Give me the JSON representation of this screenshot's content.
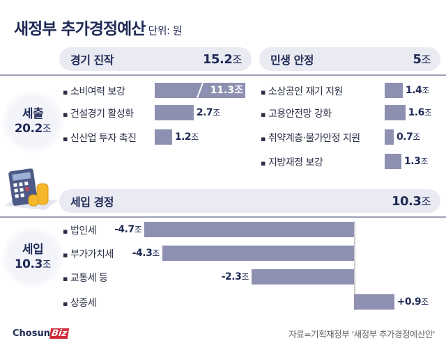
{
  "title": "새정부 추가경정예산",
  "unit": "단위: 원",
  "spending": {
    "label": "세출",
    "total": "20.2",
    "unit": "조",
    "groups": [
      {
        "name": "경기 진작",
        "total": "15.2",
        "items": [
          {
            "label": "소비여력 보강",
            "value": 11.3,
            "text": "11.3",
            "broken": true
          },
          {
            "label": "건설경기 활성화",
            "value": 2.7,
            "text": "2.7"
          },
          {
            "label": "신산업 투자 촉진",
            "value": 1.2,
            "text": "1.2"
          }
        ]
      },
      {
        "name": "민생 안정",
        "total": "5",
        "items": [
          {
            "label": "소상공인 재기 지원",
            "value": 1.4,
            "text": "1.4"
          },
          {
            "label": "고용안전망 강화",
            "value": 1.6,
            "text": "1.6"
          },
          {
            "label": "취약계층·물가안정 지원",
            "value": 0.7,
            "text": "0.7"
          },
          {
            "label": "지방재정 보강",
            "value": 1.3,
            "text": "1.3"
          }
        ]
      }
    ]
  },
  "revenue": {
    "label": "세입",
    "total": "10.3",
    "unit": "조",
    "group": {
      "name": "세입 경정",
      "total": "10.3"
    },
    "items": [
      {
        "label": "법인세",
        "value": -4.7,
        "text": "-4.7"
      },
      {
        "label": "부가가치세",
        "value": -4.3,
        "text": "-4.3"
      },
      {
        "label": "교통세 등",
        "value": -2.3,
        "text": "-2.3"
      },
      {
        "label": "상증세",
        "value": 0.9,
        "text": "+0.9"
      }
    ]
  },
  "chart_data": {
    "type": "bar",
    "unit": "조 원",
    "series": [
      {
        "name": "경기 진작",
        "categories": [
          "소비여력 보강",
          "건설경기 활성화",
          "신산업 투자 촉진"
        ],
        "values": [
          11.3,
          2.7,
          1.2
        ]
      },
      {
        "name": "민생 안정",
        "categories": [
          "소상공인 재기 지원",
          "고용안전망 강화",
          "취약계층·물가안정 지원",
          "지방재정 보강"
        ],
        "values": [
          1.4,
          1.6,
          0.7,
          1.3
        ]
      },
      {
        "name": "세입 경정",
        "categories": [
          "법인세",
          "부가가치세",
          "교통세 등",
          "상증세"
        ],
        "values": [
          -4.7,
          -4.3,
          -2.3,
          0.9
        ]
      }
    ]
  },
  "colors": {
    "bar": "#8e90b2",
    "text": "#1f2a55",
    "pill": "#e9eaf2",
    "brand": "#d02a3a"
  },
  "source": "자료=기획재정부 '새정부 추가경정예산안'",
  "logo": {
    "text1": "Chosun",
    "text2": "Biz"
  }
}
